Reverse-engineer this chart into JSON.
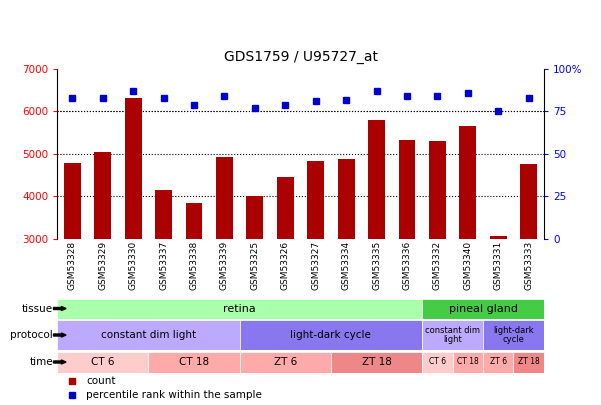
{
  "title": "GDS1759 / U95727_at",
  "samples": [
    "GSM53328",
    "GSM53329",
    "GSM53330",
    "GSM53337",
    "GSM53338",
    "GSM53339",
    "GSM53325",
    "GSM53326",
    "GSM53327",
    "GSM53334",
    "GSM53335",
    "GSM53336",
    "GSM53332",
    "GSM53340",
    "GSM53331",
    "GSM53333"
  ],
  "bar_values": [
    4780,
    5050,
    6310,
    4150,
    3850,
    4940,
    4020,
    4470,
    4840,
    4890,
    5810,
    5340,
    5310,
    5670,
    3080,
    4760
  ],
  "dot_values": [
    83,
    83,
    87,
    83,
    79,
    84,
    77,
    79,
    81,
    82,
    87,
    84,
    84,
    86,
    75,
    83
  ],
  "bar_color": "#aa0000",
  "dot_color": "#0000cc",
  "ylim_left": [
    3000,
    7000
  ],
  "ylim_right": [
    0,
    100
  ],
  "yticks_left": [
    3000,
    4000,
    5000,
    6000,
    7000
  ],
  "yticks_right": [
    0,
    25,
    50,
    75,
    100
  ],
  "ytick_right_labels": [
    "0",
    "25",
    "50",
    "75",
    "100%"
  ],
  "grid_values": [
    4000,
    5000,
    6000
  ],
  "tissue_row": [
    {
      "label": "retina",
      "start": 0,
      "end": 12,
      "color": "#aaffaa"
    },
    {
      "label": "pineal gland",
      "start": 12,
      "end": 16,
      "color": "#44cc44"
    }
  ],
  "protocol_row": [
    {
      "label": "constant dim light",
      "start": 0,
      "end": 6,
      "color": "#bbaaff"
    },
    {
      "label": "light-dark cycle",
      "start": 6,
      "end": 12,
      "color": "#8877ee"
    },
    {
      "label": "constant dim\nlight",
      "start": 12,
      "end": 14,
      "color": "#bbaaff"
    },
    {
      "label": "light-dark\ncycle",
      "start": 14,
      "end": 16,
      "color": "#8877ee"
    }
  ],
  "time_row": [
    {
      "label": "CT 6",
      "start": 0,
      "end": 3,
      "color": "#ffcccc"
    },
    {
      "label": "CT 18",
      "start": 3,
      "end": 6,
      "color": "#ffaaaa"
    },
    {
      "label": "ZT 6",
      "start": 6,
      "end": 9,
      "color": "#ffaaaa"
    },
    {
      "label": "ZT 18",
      "start": 9,
      "end": 12,
      "color": "#ee8888"
    },
    {
      "label": "CT 6",
      "start": 12,
      "end": 13,
      "color": "#ffcccc"
    },
    {
      "label": "CT 18",
      "start": 13,
      "end": 14,
      "color": "#ffaaaa"
    },
    {
      "label": "ZT 6",
      "start": 14,
      "end": 15,
      "color": "#ffaaaa"
    },
    {
      "label": "ZT 18",
      "start": 15,
      "end": 16,
      "color": "#ee8888"
    }
  ],
  "row_labels": [
    "tissue",
    "protocol",
    "time"
  ],
  "legend_items": [
    {
      "label": "count",
      "color": "#aa0000"
    },
    {
      "label": "percentile rank within the sample",
      "color": "#0000cc"
    }
  ]
}
